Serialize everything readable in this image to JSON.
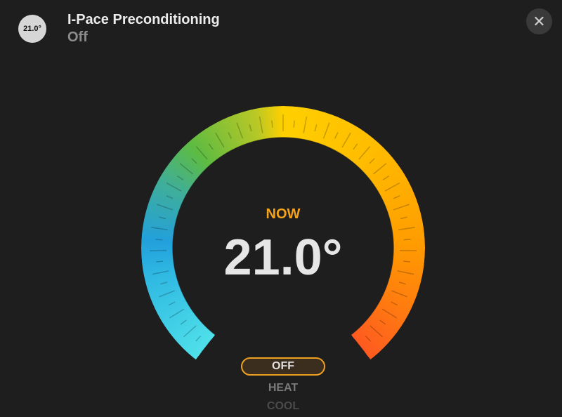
{
  "header": {
    "badge": "21.0°",
    "title": "I-Pace Preconditioning",
    "status": "Off",
    "close_icon": "close-icon"
  },
  "gauge": {
    "label": "NOW",
    "current_temperature": "21.0°",
    "colors": [
      "#4fe0ea",
      "#22a0dc",
      "#5dbb42",
      "#ffd000",
      "#ff9c00",
      "#ff5a20"
    ]
  },
  "modes": {
    "options": [
      "OFF",
      "HEAT",
      "COOL"
    ],
    "selected": "OFF",
    "accent": "#f0a020"
  }
}
